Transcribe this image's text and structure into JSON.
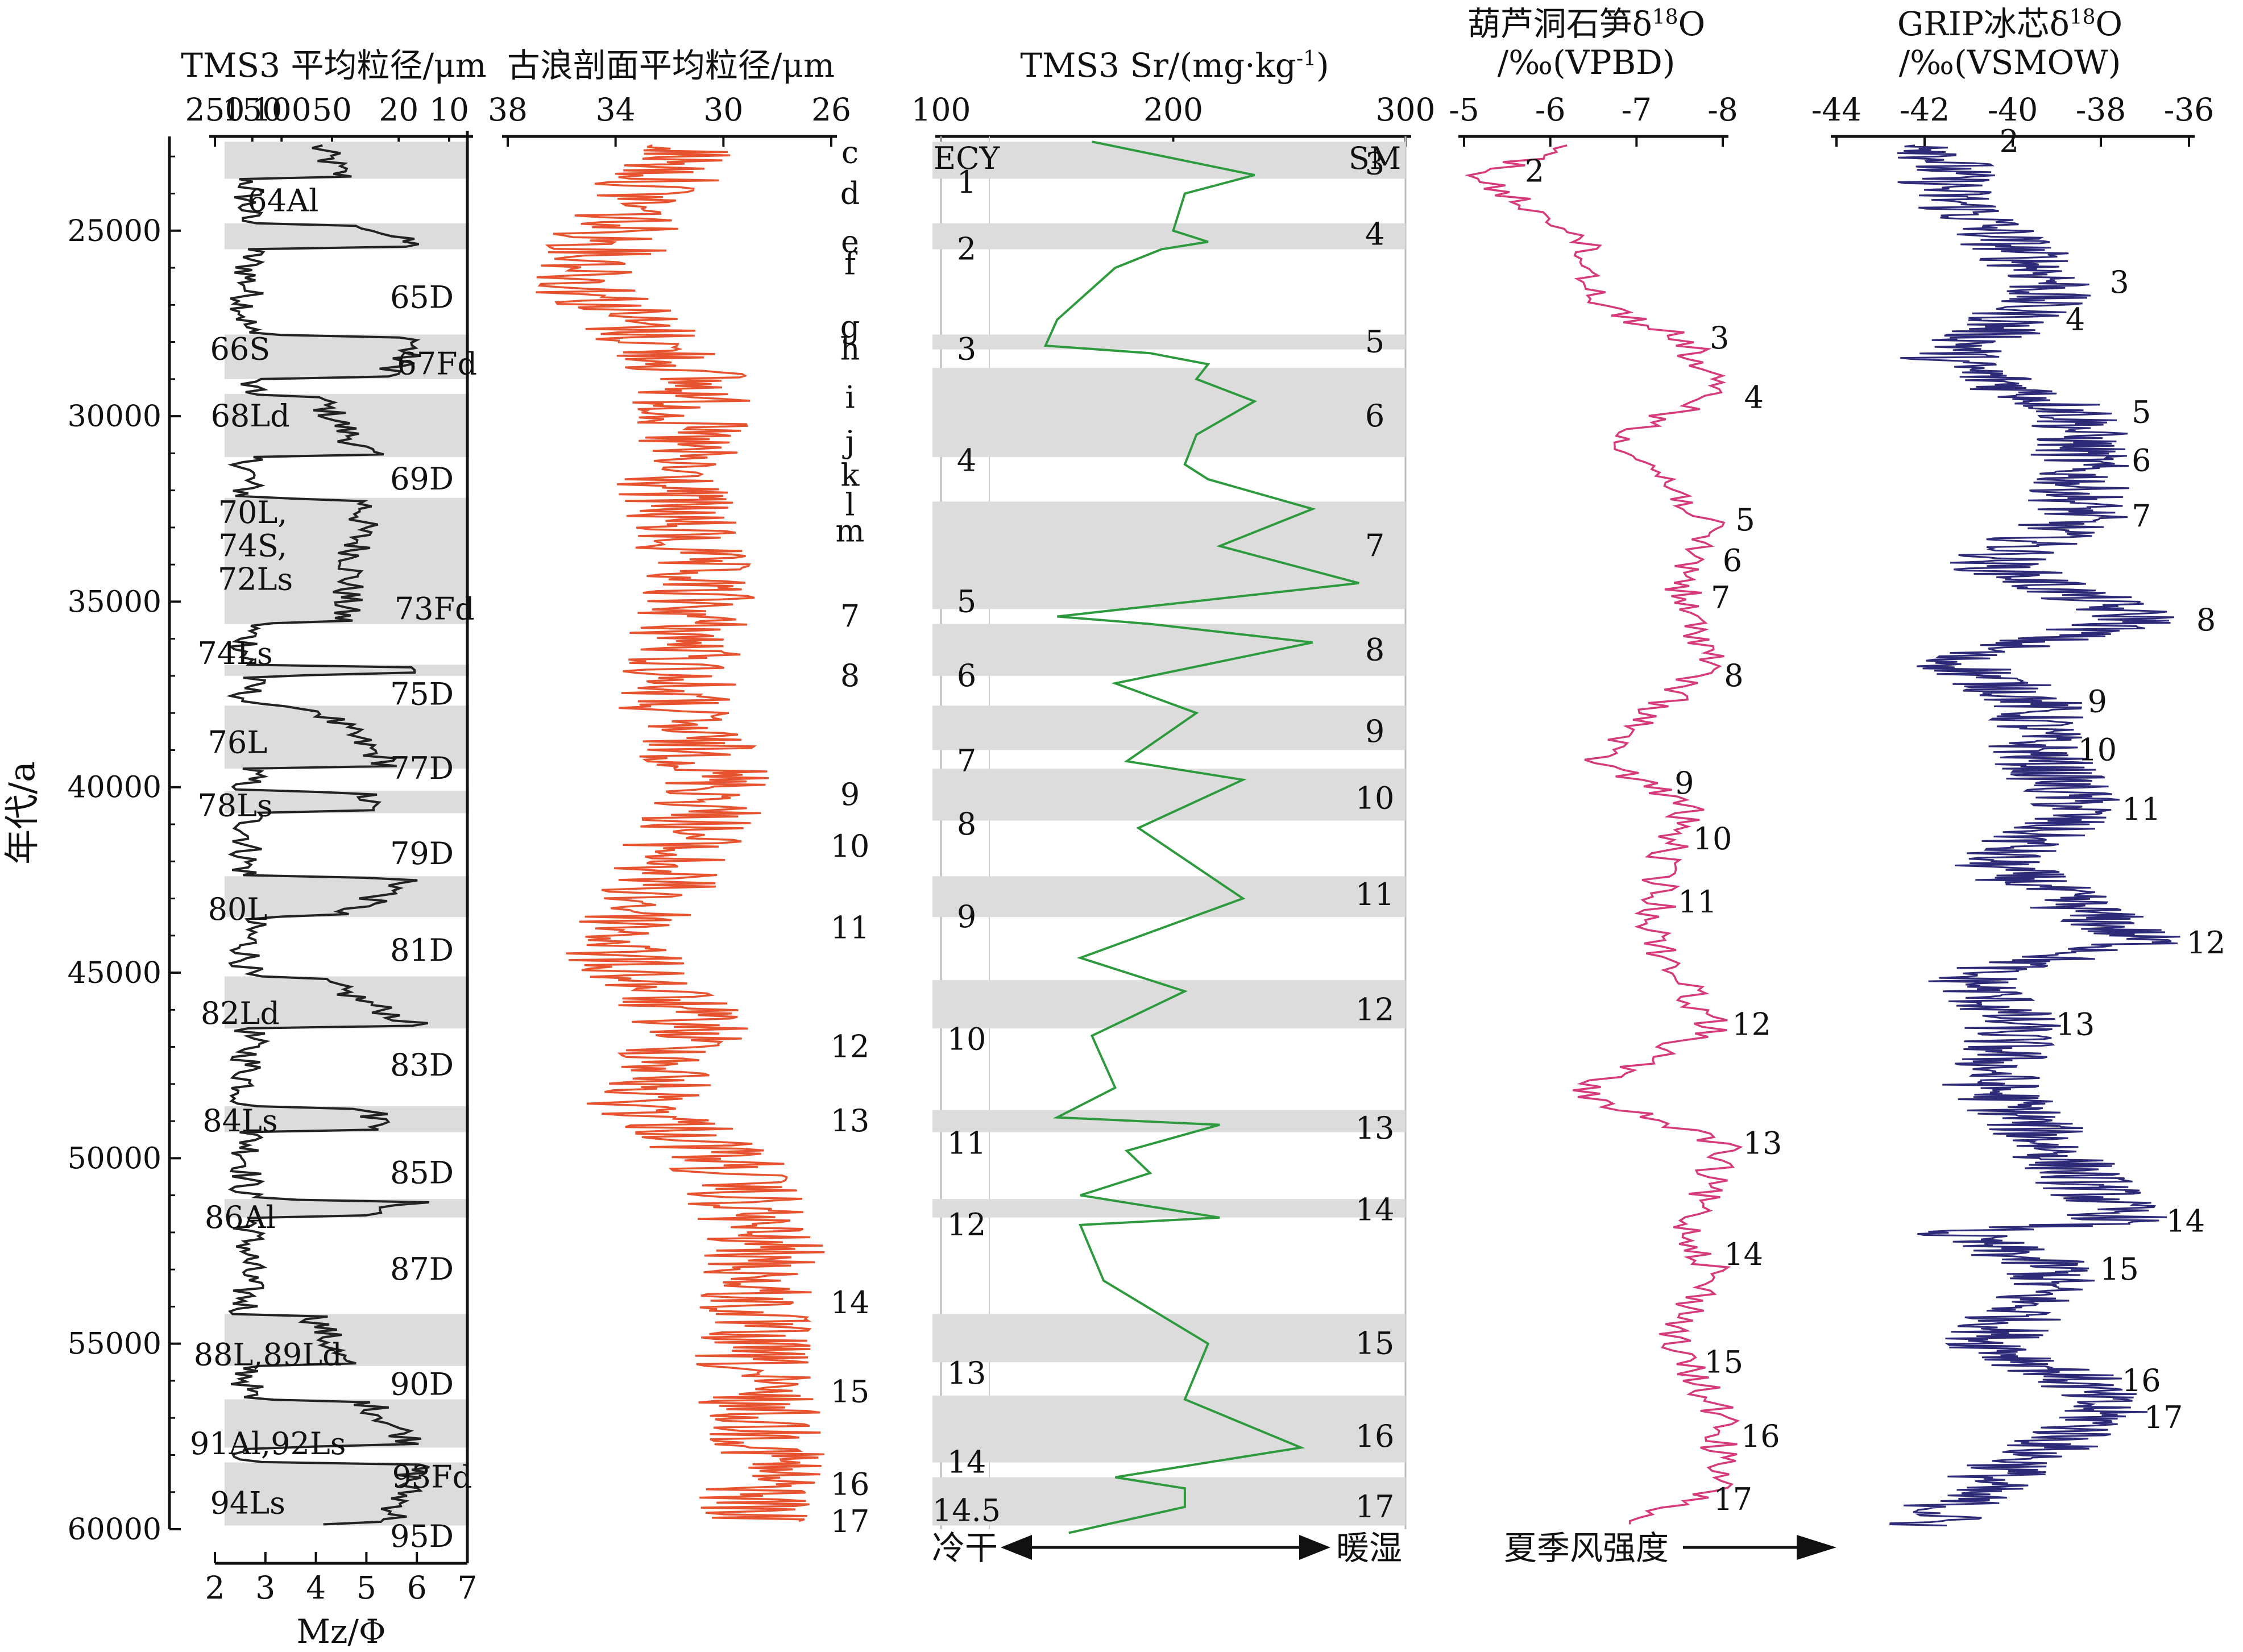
{
  "chart_data": {
    "type": "line",
    "y_axis": {
      "label": "年代/a",
      "ylim": [
        22000,
        60000
      ],
      "ticks": [
        25000,
        30000,
        35000,
        40000,
        45000,
        50000,
        55000,
        60000
      ]
    },
    "panels": [
      {
        "id": "tms3_grain",
        "title": "TMS3 平均粒径/μm",
        "top_ticks": [
          {
            "label": "250",
            "value": 2.0
          },
          {
            "label": "150",
            "value": 2.74
          },
          {
            "label": "100",
            "value": 3.32
          },
          {
            "label": "50",
            "value": 4.32
          },
          {
            "label": "20",
            "value": 5.64
          },
          {
            "label": "10",
            "value": 6.64
          }
        ],
        "bottom_label": "Mz/Φ",
        "bottom_ticks": [
          "2",
          "3",
          "4",
          "5",
          "6",
          "7"
        ],
        "xlim": [
          2,
          7
        ],
        "line_color": "#222222",
        "bands": [
          [
            22600,
            23600
          ],
          [
            24800,
            25500
          ],
          [
            27800,
            29000
          ],
          [
            29400,
            31100
          ],
          [
            32200,
            35600
          ],
          [
            36700,
            37000
          ],
          [
            37800,
            39500
          ],
          [
            40100,
            40700
          ],
          [
            42400,
            43500
          ],
          [
            45100,
            46500
          ],
          [
            48600,
            49300
          ],
          [
            51100,
            51600
          ],
          [
            54200,
            55600
          ],
          [
            56500,
            57800
          ],
          [
            58200,
            59900
          ]
        ],
        "units": [
          {
            "text": "64Al",
            "y": 24200,
            "x": 3.35
          },
          {
            "text": "65D",
            "y": 26800,
            "x": 6.1
          },
          {
            "text": "66S",
            "y": 28200,
            "x": 2.5
          },
          {
            "text": "67Fd",
            "y": 28600,
            "x": 6.4
          },
          {
            "text": "68Ld",
            "y": 30000,
            "x": 2.7
          },
          {
            "text": "69D",
            "y": 31700,
            "x": 6.1
          },
          {
            "text": "70L,",
            "y": 32600,
            "x": 2.75
          },
          {
            "text": "74S,",
            "y": 33500,
            "x": 2.75
          },
          {
            "text": "72Ls",
            "y": 34400,
            "x": 2.8
          },
          {
            "text": "73Fd",
            "y": 35200,
            "x": 6.35
          },
          {
            "text": "74Ls",
            "y": 36400,
            "x": 2.4
          },
          {
            "text": "75D",
            "y": 37500,
            "x": 6.1
          },
          {
            "text": "76L",
            "y": 38800,
            "x": 2.45
          },
          {
            "text": "77D",
            "y": 39500,
            "x": 6.1
          },
          {
            "text": "78Ls",
            "y": 40500,
            "x": 2.4
          },
          {
            "text": "79D",
            "y": 41800,
            "x": 6.1
          },
          {
            "text": "80L",
            "y": 43300,
            "x": 2.45
          },
          {
            "text": "81D",
            "y": 44400,
            "x": 6.1
          },
          {
            "text": "82Ld",
            "y": 46100,
            "x": 2.5
          },
          {
            "text": "83D",
            "y": 47500,
            "x": 6.1
          },
          {
            "text": "84Ls",
            "y": 49000,
            "x": 2.5
          },
          {
            "text": "85D",
            "y": 50400,
            "x": 6.1
          },
          {
            "text": "86Al",
            "y": 51600,
            "x": 2.5
          },
          {
            "text": "87D",
            "y": 53000,
            "x": 6.1
          },
          {
            "text": "88L,89Ld",
            "y": 55300,
            "x": 3.05
          },
          {
            "text": "90D",
            "y": 56100,
            "x": 6.1
          },
          {
            "text": "91Al,92Ls",
            "y": 57700,
            "x": 3.05
          },
          {
            "text": "93Fd",
            "y": 58600,
            "x": 6.3
          },
          {
            "text": "94Ls",
            "y": 59300,
            "x": 2.65
          },
          {
            "text": "95D",
            "y": 60200,
            "x": 6.1
          }
        ]
      },
      {
        "id": "gulang_grain",
        "title": "古浪剖面平均粒径/μm",
        "top_ticks": [
          {
            "label": "38",
            "value": 38
          },
          {
            "label": "34",
            "value": 34
          },
          {
            "label": "30",
            "value": 30
          },
          {
            "label": "26",
            "value": 26
          }
        ],
        "xlim": [
          38,
          26
        ],
        "line_color": "#e8532f",
        "labels": [
          {
            "text": "c",
            "y": 22900
          },
          {
            "text": "d",
            "y": 24000
          },
          {
            "text": "e",
            "y": 25300
          },
          {
            "text": "f",
            "y": 25900
          },
          {
            "text": "g",
            "y": 27600
          },
          {
            "text": "h",
            "y": 28200
          },
          {
            "text": "i",
            "y": 29500
          },
          {
            "text": "j",
            "y": 30700
          },
          {
            "text": "k",
            "y": 31600
          },
          {
            "text": "l",
            "y": 32400
          },
          {
            "text": "m",
            "y": 33100
          },
          {
            "text": "7",
            "y": 35400
          },
          {
            "text": "8",
            "y": 37000
          },
          {
            "text": "9",
            "y": 40200
          },
          {
            "text": "10",
            "y": 41600
          },
          {
            "text": "11",
            "y": 43800
          },
          {
            "text": "12",
            "y": 47000
          },
          {
            "text": "13",
            "y": 49000
          },
          {
            "text": "14",
            "y": 53900
          },
          {
            "text": "15",
            "y": 56300
          },
          {
            "text": "16",
            "y": 58800
          },
          {
            "text": "17",
            "y": 59800
          }
        ]
      },
      {
        "id": "tms3_sr",
        "title": "TMS3 Sr/(mg·kg-1)",
        "top_ticks": [
          {
            "label": "100",
            "value": 100
          },
          {
            "label": "200",
            "value": 200
          },
          {
            "label": "300",
            "value": 300
          }
        ],
        "xlim": [
          100,
          300
        ],
        "line_color": "#2e9a3e",
        "corner_left": "ECY",
        "corner_right": "SM",
        "axis_arrow_left": "冷干",
        "axis_arrow_right": "暖湿",
        "bands": [
          [
            22600,
            23600
          ],
          [
            24800,
            25500
          ],
          [
            27800,
            28200
          ],
          [
            28700,
            31100
          ],
          [
            32300,
            35200
          ],
          [
            35600,
            37000
          ],
          [
            37800,
            39000
          ],
          [
            39500,
            40900
          ],
          [
            42400,
            43500
          ],
          [
            45200,
            46500
          ],
          [
            48700,
            49300
          ],
          [
            51100,
            51600
          ],
          [
            54200,
            55500
          ],
          [
            56400,
            58200
          ],
          [
            58600,
            59900
          ]
        ],
        "left_labels": [
          {
            "text": "1",
            "y": 23700
          },
          {
            "text": "2",
            "y": 25500
          },
          {
            "text": "3",
            "y": 28200
          },
          {
            "text": "4",
            "y": 31200
          },
          {
            "text": "5",
            "y": 35000
          },
          {
            "text": "6",
            "y": 37000
          },
          {
            "text": "7",
            "y": 39300
          },
          {
            "text": "8",
            "y": 41000
          },
          {
            "text": "9",
            "y": 43500
          },
          {
            "text": "10",
            "y": 46800
          },
          {
            "text": "11",
            "y": 49600
          },
          {
            "text": "12",
            "y": 51800
          },
          {
            "text": "13",
            "y": 55800
          },
          {
            "text": "14",
            "y": 58200
          },
          {
            "text": "14.5",
            "y": 59500
          }
        ],
        "right_labels": [
          {
            "text": "3",
            "y": 23200
          },
          {
            "text": "4",
            "y": 25100
          },
          {
            "text": "5",
            "y": 28000
          },
          {
            "text": "6",
            "y": 30000
          },
          {
            "text": "7",
            "y": 33500
          },
          {
            "text": "8",
            "y": 36300
          },
          {
            "text": "9",
            "y": 38500
          },
          {
            "text": "10",
            "y": 40300
          },
          {
            "text": "11",
            "y": 42900
          },
          {
            "text": "12",
            "y": 46000
          },
          {
            "text": "13",
            "y": 49200
          },
          {
            "text": "14",
            "y": 51400
          },
          {
            "text": "15",
            "y": 55000
          },
          {
            "text": "16",
            "y": 57500
          },
          {
            "text": "17",
            "y": 59400
          }
        ],
        "points": [
          [
            165,
            22600
          ],
          [
            235,
            23500
          ],
          [
            205,
            24000
          ],
          [
            200,
            25000
          ],
          [
            215,
            25300
          ],
          [
            195,
            25500
          ],
          [
            175,
            26000
          ],
          [
            150,
            27400
          ],
          [
            145,
            28100
          ],
          [
            190,
            28300
          ],
          [
            215,
            28600
          ],
          [
            210,
            29000
          ],
          [
            235,
            29600
          ],
          [
            210,
            30500
          ],
          [
            205,
            31300
          ],
          [
            215,
            31700
          ],
          [
            260,
            32500
          ],
          [
            220,
            33500
          ],
          [
            280,
            34500
          ],
          [
            150,
            35400
          ],
          [
            190,
            35600
          ],
          [
            260,
            36100
          ],
          [
            175,
            37200
          ],
          [
            210,
            38000
          ],
          [
            180,
            39300
          ],
          [
            230,
            39800
          ],
          [
            185,
            41100
          ],
          [
            230,
            43000
          ],
          [
            160,
            44600
          ],
          [
            205,
            45500
          ],
          [
            165,
            46700
          ],
          [
            175,
            48100
          ],
          [
            150,
            48900
          ],
          [
            220,
            49100
          ],
          [
            180,
            49800
          ],
          [
            190,
            50400
          ],
          [
            160,
            51000
          ],
          [
            220,
            51600
          ],
          [
            160,
            51800
          ],
          [
            170,
            53300
          ],
          [
            215,
            55000
          ],
          [
            205,
            56500
          ],
          [
            255,
            57800
          ],
          [
            175,
            58600
          ],
          [
            205,
            58900
          ],
          [
            205,
            59400
          ],
          [
            155,
            60100
          ]
        ]
      },
      {
        "id": "hulu_d18o",
        "title": "葫芦洞石笋δ18O",
        "subtitle": "/‰(VPBD)",
        "top_ticks": [
          {
            "label": "-5",
            "value": -5
          },
          {
            "label": "-6",
            "value": -6
          },
          {
            "label": "-7",
            "value": -7
          },
          {
            "label": "-8",
            "value": -8
          }
        ],
        "xlim": [
          -5,
          -8
        ],
        "line_color": "#d63a7a",
        "bottom_arrow": "夏季风强度",
        "labels": [
          {
            "text": "2",
            "y": 23400
          },
          {
            "text": "3",
            "y": 27900
          },
          {
            "text": "4",
            "y": 29500
          },
          {
            "text": "5",
            "y": 32800
          },
          {
            "text": "6",
            "y": 33900
          },
          {
            "text": "7",
            "y": 34900
          },
          {
            "text": "8",
            "y": 37000
          },
          {
            "text": "9",
            "y": 39900
          },
          {
            "text": "10",
            "y": 41400
          },
          {
            "text": "11",
            "y": 43100
          },
          {
            "text": "12",
            "y": 46400
          },
          {
            "text": "13",
            "y": 49600
          },
          {
            "text": "14",
            "y": 52600
          },
          {
            "text": "15",
            "y": 55500
          },
          {
            "text": "16",
            "y": 57500
          },
          {
            "text": "17",
            "y": 59200
          }
        ]
      },
      {
        "id": "grip_d18o",
        "title": "GRIP冰芯δ18O",
        "subtitle": "/‰(VSMOW)",
        "top_ticks": [
          {
            "label": "-44",
            "value": -44
          },
          {
            "label": "-42",
            "value": -42
          },
          {
            "label": "-40",
            "value": -40
          },
          {
            "label": "-38",
            "value": -38
          },
          {
            "label": "-36",
            "value": -36
          }
        ],
        "xlim": [
          -44,
          -36
        ],
        "line_color": "#2d2a78",
        "labels": [
          {
            "text": "2",
            "y": 22600
          },
          {
            "text": "3",
            "y": 26400
          },
          {
            "text": "4",
            "y": 27400
          },
          {
            "text": "5",
            "y": 29900
          },
          {
            "text": "6",
            "y": 31200
          },
          {
            "text": "7",
            "y": 32700
          },
          {
            "text": "8",
            "y": 35500
          },
          {
            "text": "9",
            "y": 37700
          },
          {
            "text": "10",
            "y": 39000
          },
          {
            "text": "11",
            "y": 40600
          },
          {
            "text": "12",
            "y": 44200
          },
          {
            "text": "13",
            "y": 46400
          },
          {
            "text": "14",
            "y": 51700
          },
          {
            "text": "15",
            "y": 53000
          },
          {
            "text": "16",
            "y": 56000
          },
          {
            "text": "17",
            "y": 57000
          }
        ]
      }
    ]
  }
}
